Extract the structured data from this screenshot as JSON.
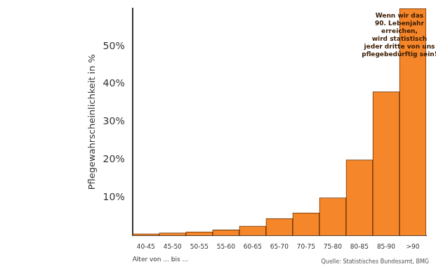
{
  "chart_data": {
    "type": "bar",
    "categories": [
      "40-45",
      "45-50",
      "50-55",
      "55-60",
      "60-65",
      "65-70",
      "70-75",
      "75-80",
      "80-85",
      "85-90",
      ">90"
    ],
    "values": [
      0.5,
      0.7,
      1,
      1.5,
      2.5,
      4.5,
      6,
      10,
      20,
      38,
      60
    ],
    "color": "#f5872a",
    "ylabel": "Pflegewahrscheinlichkeit in %",
    "xlabel": "Alter von ... bis ...",
    "ylim": [
      0,
      60
    ],
    "yticks": [
      {
        "value": 10,
        "label": "10%"
      },
      {
        "value": 20,
        "label": "20%"
      },
      {
        "value": 30,
        "label": "30%"
      },
      {
        "value": 40,
        "label": "40%"
      },
      {
        "value": 50,
        "label": "50%"
      }
    ],
    "grid": false,
    "annotation": [
      "Wenn wir das",
      "90. Lebenjahr",
      "erreichen,",
      "wird statistisch",
      "jeder dritte von uns",
      "pflegebedürftig sein!"
    ],
    "source": "Quelle: Statistisches Bundesamt, BMG"
  }
}
